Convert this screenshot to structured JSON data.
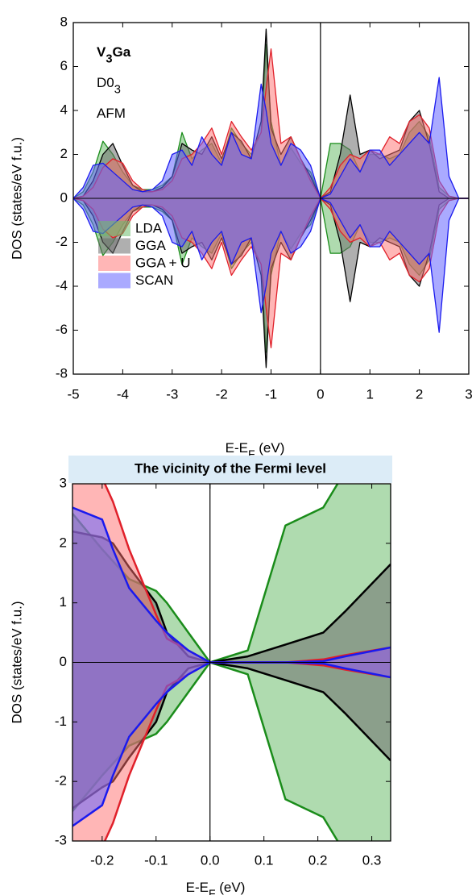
{
  "chart_data": [
    {
      "type": "area",
      "xlabel": {
        "main": "E-E",
        "sub": "F",
        "tail": " (eV)"
      },
      "ylabel": "DOS (states/eV f.u.)",
      "annotations": [
        {
          "main": "V",
          "sub": "3",
          "tail": "Ga",
          "bold": true
        },
        {
          "main": "D0",
          "sub": "3"
        },
        {
          "main": "AFM"
        }
      ],
      "xlim": [
        -5,
        3
      ],
      "ylim": [
        -8,
        8
      ],
      "xticks": [
        -5,
        -4,
        -3,
        -2,
        -1,
        0,
        1,
        2,
        3
      ],
      "yticks": [
        -8,
        -6,
        -4,
        -2,
        0,
        2,
        4,
        6,
        8
      ],
      "legend": "lower left",
      "x": [
        -5,
        -4.8,
        -4.6,
        -4.4,
        -4.2,
        -4.0,
        -3.8,
        -3.6,
        -3.4,
        -3.2,
        -3.0,
        -2.8,
        -2.6,
        -2.4,
        -2.2,
        -2.0,
        -1.8,
        -1.6,
        -1.4,
        -1.2,
        -1.1,
        -1.0,
        -0.8,
        -0.6,
        -0.4,
        -0.2,
        0,
        0.2,
        0.4,
        0.6,
        0.8,
        1.0,
        1.2,
        1.4,
        1.6,
        1.8,
        2.0,
        2.2,
        2.4,
        2.6,
        2.8,
        3.0
      ],
      "series": [
        {
          "name": "LDA",
          "color": "#1a8c1a",
          "fill": "rgba(110,190,110,0.55)",
          "values": [
            0,
            0.3,
            1.2,
            2.6,
            2.0,
            1.2,
            0.6,
            0.4,
            0.4,
            0.6,
            1.0,
            3.0,
            1.8,
            2.2,
            2.5,
            1.6,
            3.2,
            2.5,
            2.0,
            3.0,
            7.0,
            3.5,
            1.5,
            2.3,
            1.6,
            1.2,
            0,
            2.5,
            2.5,
            2.2,
            1.2,
            2.0,
            2.0,
            1.8,
            2.0,
            3.0,
            3.5,
            2.8,
            0.5,
            0.1,
            0,
            0
          ],
          "values_down": [
            0,
            -0.3,
            -1.2,
            -2.6,
            -2.0,
            -1.2,
            -0.6,
            -0.4,
            -0.4,
            -0.6,
            -1.0,
            -3.0,
            -1.8,
            -2.2,
            -2.5,
            -1.6,
            -3.2,
            -2.5,
            -2.0,
            -3.0,
            -7.0,
            -3.5,
            -1.5,
            -2.3,
            -1.6,
            -1.2,
            0,
            -2.5,
            -2.5,
            -2.2,
            -1.2,
            -2.0,
            -2.0,
            -1.8,
            -2.0,
            -3.0,
            -3.5,
            -2.8,
            -0.5,
            -0.1,
            0,
            0
          ]
        },
        {
          "name": "GGA",
          "color": "#000000",
          "fill": "rgba(110,110,110,0.55)",
          "values": [
            0,
            0.1,
            0.8,
            2.0,
            2.5,
            1.5,
            0.6,
            0.3,
            0.3,
            0.5,
            1.0,
            2.5,
            2.2,
            2.0,
            2.8,
            1.8,
            3.0,
            2.6,
            1.8,
            3.5,
            7.7,
            3.2,
            2.0,
            2.8,
            1.8,
            1.0,
            0,
            0.3,
            2.0,
            4.7,
            2.0,
            2.2,
            1.8,
            2.0,
            2.2,
            3.5,
            4.0,
            2.5,
            0.3,
            0,
            0,
            0
          ],
          "values_down": [
            0,
            -0.1,
            -0.8,
            -2.0,
            -2.5,
            -1.5,
            -0.6,
            -0.3,
            -0.3,
            -0.5,
            -1.0,
            -2.5,
            -2.2,
            -2.0,
            -2.8,
            -1.8,
            -3.0,
            -2.6,
            -1.8,
            -3.5,
            -7.7,
            -3.2,
            -2.0,
            -2.8,
            -1.8,
            -1.0,
            0,
            -0.3,
            -2.0,
            -4.7,
            -2.0,
            -2.2,
            -1.8,
            -2.0,
            -2.2,
            -3.5,
            -4.0,
            -2.5,
            -0.3,
            0,
            0,
            0
          ]
        },
        {
          "name": "GGA + U",
          "color": "#e0202a",
          "fill": "rgba(255,110,110,0.5)",
          "values": [
            0,
            0.1,
            0.5,
            1.4,
            1.8,
            1.6,
            0.8,
            0.4,
            0.3,
            0.4,
            0.8,
            1.8,
            2.0,
            2.5,
            3.2,
            2.0,
            3.5,
            2.8,
            2.2,
            3.0,
            5.0,
            6.8,
            2.5,
            2.8,
            1.8,
            0.8,
            0,
            0.5,
            1.5,
            2.0,
            1.8,
            2.2,
            2.0,
            2.8,
            2.5,
            3.5,
            3.8,
            3.2,
            0.8,
            0.1,
            0,
            0
          ],
          "values_down": [
            0,
            -0.1,
            -0.5,
            -1.4,
            -1.8,
            -1.6,
            -0.8,
            -0.4,
            -0.3,
            -0.4,
            -0.8,
            -1.8,
            -2.0,
            -2.5,
            -3.2,
            -2.0,
            -3.5,
            -2.8,
            -2.2,
            -3.0,
            -5.0,
            -6.8,
            -2.5,
            -2.8,
            -1.8,
            -0.8,
            0,
            -0.5,
            -1.5,
            -2.0,
            -1.8,
            -2.2,
            -2.0,
            -2.8,
            -2.5,
            -3.5,
            -3.8,
            -3.2,
            -0.8,
            -0.1,
            0,
            0
          ]
        },
        {
          "name": "SCAN",
          "color": "#1a1aee",
          "fill": "rgba(100,100,255,0.55)",
          "values": [
            0,
            0.5,
            1.5,
            1.6,
            1.2,
            0.8,
            0.4,
            0.3,
            0.4,
            0.8,
            2.0,
            2.2,
            1.5,
            2.8,
            2.0,
            1.5,
            3.0,
            2.0,
            1.8,
            5.2,
            4.0,
            2.5,
            1.5,
            2.5,
            2.2,
            1.5,
            0,
            0.2,
            1.0,
            1.8,
            1.2,
            2.2,
            2.2,
            1.5,
            2.0,
            2.5,
            3.0,
            2.5,
            5.5,
            1.0,
            0,
            0
          ],
          "values_down": [
            0,
            -0.5,
            -1.5,
            -1.6,
            -1.2,
            -0.8,
            -0.4,
            -0.3,
            -0.4,
            -0.8,
            -2.0,
            -2.2,
            -1.5,
            -2.8,
            -2.0,
            -1.5,
            -3.0,
            -2.0,
            -1.8,
            -5.2,
            -4.0,
            -2.5,
            -1.5,
            -2.5,
            -2.2,
            -1.5,
            0,
            -0.2,
            -1.0,
            -1.8,
            -1.2,
            -2.2,
            -2.2,
            -1.5,
            -2.0,
            -2.5,
            -3.0,
            -2.5,
            -6.1,
            -1.0,
            0,
            0
          ]
        }
      ]
    },
    {
      "type": "area",
      "title": "The vicinity of the Fermi level",
      "xlabel": {
        "main": "E-E",
        "sub": "F",
        "tail": " (eV)"
      },
      "ylabel": "DOS (states/eV f.u.)",
      "xlim": [
        -0.255,
        0.335
      ],
      "ylim": [
        -3,
        3
      ],
      "xticks": [
        -0.2,
        -0.1,
        {
          "value": 0,
          "label": "0.0"
        },
        0.1,
        0.2,
        0.3
      ],
      "yticks": [
        -3,
        -2,
        -1,
        0,
        1,
        2,
        3
      ],
      "x": [
        -0.255,
        -0.2,
        -0.18,
        -0.15,
        -0.1,
        -0.08,
        -0.04,
        0,
        0.07,
        0.14,
        0.21,
        0.25,
        0.335
      ],
      "series": [
        {
          "name": "LDA",
          "color": "#1a8c1a",
          "fill": "rgba(110,190,110,0.55)",
          "values": [
            2.5,
            1.9,
            1.7,
            1.4,
            1.2,
            1.0,
            0.5,
            0,
            0.2,
            2.3,
            2.6,
            3.2,
            3.5
          ],
          "values_down": [
            -2.5,
            -1.9,
            -1.7,
            -1.4,
            -1.2,
            -1.0,
            -0.5,
            0,
            -0.2,
            -2.3,
            -2.6,
            -3.2,
            -3.5
          ]
        },
        {
          "name": "GGA",
          "color": "#000000",
          "fill": "rgba(110,110,110,0.55)",
          "values": [
            2.2,
            2.1,
            2.0,
            1.6,
            1.0,
            0.5,
            0.1,
            0,
            0.1,
            0.3,
            0.5,
            0.85,
            1.65
          ],
          "values_down": [
            -2.45,
            -2.1,
            -2.0,
            -1.6,
            -1.0,
            -0.5,
            -0.1,
            0,
            -0.1,
            -0.3,
            -0.5,
            -0.85,
            -1.65
          ]
        },
        {
          "name": "GGA + U",
          "color": "#e0202a",
          "fill": "rgba(255,110,110,0.5)",
          "values": [
            4.0,
            3.1,
            2.7,
            1.9,
            0.8,
            0.4,
            0.2,
            0,
            0,
            0,
            0.05,
            0.12,
            0.25
          ],
          "values_down": [
            -4.0,
            -3.1,
            -2.7,
            -1.9,
            -0.8,
            -0.4,
            -0.2,
            0,
            0,
            0,
            -0.05,
            -0.12,
            -0.25
          ]
        },
        {
          "name": "SCAN",
          "color": "#1a1aee",
          "fill": "rgba(100,100,255,0.55)",
          "values": [
            2.6,
            2.4,
            1.9,
            1.25,
            0.7,
            0.5,
            0.2,
            0,
            0,
            0,
            0.02,
            0.1,
            0.25
          ],
          "values_down": [
            -2.75,
            -2.4,
            -1.9,
            -1.25,
            -0.7,
            -0.5,
            -0.2,
            0,
            0,
            0,
            -0.02,
            -0.1,
            -0.25
          ]
        }
      ]
    }
  ]
}
